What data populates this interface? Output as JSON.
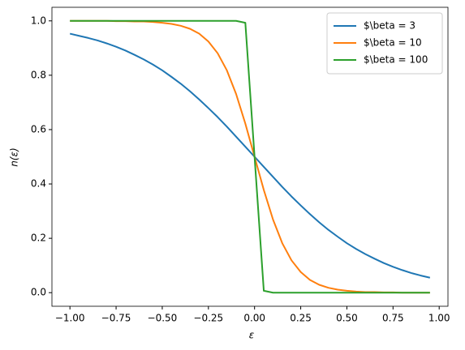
{
  "chart_data": {
    "type": "line",
    "xlabel": "ε",
    "ylabel": "n(ε)",
    "x": [
      -1,
      -0.95,
      -0.9,
      -0.85,
      -0.8,
      -0.75,
      -0.7,
      -0.65,
      -0.6,
      -0.55,
      -0.5,
      -0.45,
      -0.4,
      -0.35,
      -0.3,
      -0.25,
      -0.2,
      -0.15,
      -0.1,
      -0.05,
      0,
      0.05,
      0.1,
      0.15,
      0.2,
      0.25,
      0.3,
      0.35,
      0.4,
      0.45,
      0.5,
      0.55,
      0.6,
      0.65,
      0.7,
      0.75,
      0.8,
      0.85,
      0.9,
      0.95
    ],
    "series": [
      {
        "name": "$\\beta = 3",
        "color": "#1f77b4",
        "values": [
          0.953,
          0.945,
          0.937,
          0.928,
          0.917,
          0.905,
          0.891,
          0.875,
          0.858,
          0.839,
          0.818,
          0.794,
          0.769,
          0.741,
          0.711,
          0.679,
          0.646,
          0.611,
          0.574,
          0.537,
          0.5,
          0.463,
          0.426,
          0.389,
          0.354,
          0.321,
          0.289,
          0.259,
          0.231,
          0.206,
          0.182,
          0.161,
          0.142,
          0.125,
          0.109,
          0.095,
          0.083,
          0.072,
          0.063,
          0.055
        ]
      },
      {
        "name": "$\\beta = 10",
        "color": "#ff7f0e",
        "values": [
          1,
          1,
          1,
          1,
          1,
          0.999,
          0.999,
          0.998,
          0.998,
          0.996,
          0.993,
          0.989,
          0.982,
          0.971,
          0.953,
          0.924,
          0.881,
          0.818,
          0.731,
          0.622,
          0.5,
          0.378,
          0.269,
          0.182,
          0.119,
          0.076,
          0.047,
          0.029,
          0.018,
          0.011,
          0.007,
          0.004,
          0.002,
          0.002,
          0.001,
          0.001,
          0,
          0,
          0,
          0
        ]
      },
      {
        "name": "$\\beta = 100",
        "color": "#2ca02c",
        "values": [
          1,
          1,
          1,
          1,
          1,
          1,
          1,
          1,
          1,
          1,
          1,
          1,
          1,
          1,
          1,
          1,
          1,
          1,
          1,
          0.993,
          0.5,
          0.007,
          0,
          0,
          0,
          0,
          0,
          0,
          0,
          0,
          0,
          0,
          0,
          0,
          0,
          0,
          0,
          0,
          0,
          0
        ]
      }
    ],
    "xlim": [
      -1.0975,
      1.0475
    ],
    "xticks": [
      {
        "value": -1,
        "label": "−1.00"
      },
      {
        "value": -0.75,
        "label": "−0.75"
      },
      {
        "value": -0.5,
        "label": "−0.50"
      },
      {
        "value": -0.25,
        "label": "−0.25"
      },
      {
        "value": 0,
        "label": "0.00"
      },
      {
        "value": 0.25,
        "label": "0.25"
      },
      {
        "value": 0.5,
        "label": "0.50"
      },
      {
        "value": 0.75,
        "label": "0.75"
      },
      {
        "value": 1,
        "label": "1.00"
      }
    ],
    "ylim": [
      -0.05,
      1.05
    ],
    "yticks": [
      {
        "value": 0,
        "label": "0.0"
      },
      {
        "value": 0.2,
        "label": "0.2"
      },
      {
        "value": 0.4,
        "label": "0.4"
      },
      {
        "value": 0.6,
        "label": "0.6"
      },
      {
        "value": 0.8,
        "label": "0.8"
      },
      {
        "value": 1,
        "label": "1.0"
      }
    ],
    "legend": "upper-right"
  }
}
